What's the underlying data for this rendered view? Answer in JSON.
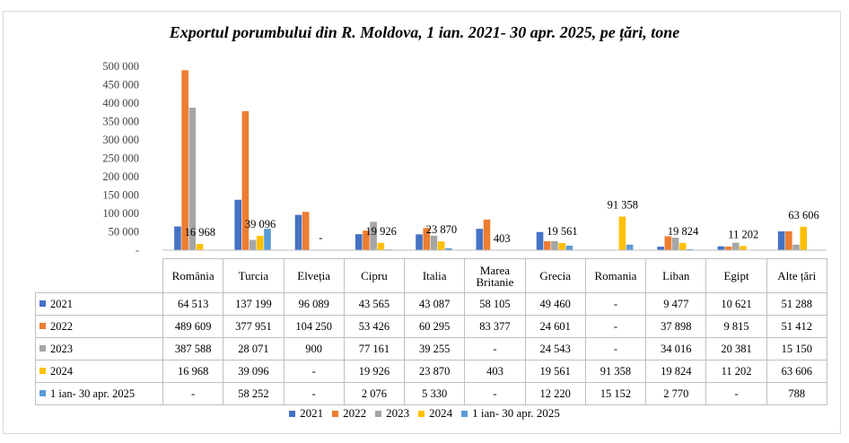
{
  "chart_data": {
    "type": "bar",
    "title": "Exportul porumbului din R. Moldova, 1 ian. 2021- 30 apr. 2025, pe țări, tone",
    "categories": [
      "România",
      "Turcia",
      "Elveția",
      "Cipru",
      "Italia",
      "Marea Britanie",
      "Grecia",
      "Romania",
      "Liban",
      "Egipt",
      "Alte țări"
    ],
    "ylim": [
      0,
      500000
    ],
    "yticks": [
      "500 000",
      "450 000",
      "400 000",
      "350 000",
      "300 000",
      "250 000",
      "200 000",
      "150 000",
      "100 000",
      "50 000",
      "-"
    ],
    "ytick_values": [
      500000,
      450000,
      400000,
      350000,
      300000,
      250000,
      200000,
      150000,
      100000,
      50000,
      0
    ],
    "series": [
      {
        "name": "2021",
        "color": "#4472C4",
        "values": [
          64513,
          137199,
          96089,
          43565,
          43087,
          58105,
          49460,
          null,
          9477,
          10621,
          51288
        ],
        "labels": [
          "64 513",
          "137 199",
          "96 089",
          "43 565",
          "43 087",
          "58 105",
          "49 460",
          "-",
          "9 477",
          "10 621",
          "51 288"
        ]
      },
      {
        "name": "2022",
        "color": "#ED7D31",
        "values": [
          489609,
          377951,
          104250,
          53426,
          60295,
          83377,
          24601,
          null,
          37898,
          9815,
          51412
        ],
        "labels": [
          "489 609",
          "377 951",
          "104 250",
          "53 426",
          "60 295",
          "83 377",
          "24 601",
          "-",
          "37 898",
          "9 815",
          "51 412"
        ]
      },
      {
        "name": "2023",
        "color": "#A5A5A5",
        "values": [
          387588,
          28071,
          900,
          77161,
          39255,
          null,
          24543,
          null,
          34016,
          20381,
          15150
        ],
        "labels": [
          "387 588",
          "28 071",
          "900",
          "77 161",
          "39 255",
          "-",
          "24 543",
          "-",
          "34 016",
          "20 381",
          "15 150"
        ]
      },
      {
        "name": "2024",
        "color": "#FFC000",
        "values": [
          16968,
          39096,
          null,
          19926,
          23870,
          403,
          19561,
          91358,
          19824,
          11202,
          63606
        ],
        "labels": [
          "16 968",
          "39 096",
          "-",
          "19 926",
          "23 870",
          "403",
          "19 561",
          "91 358",
          "19 824",
          "11 202",
          "63 606"
        ]
      },
      {
        "name": "1 ian- 30 apr. 2025",
        "color": "#5B9BD5",
        "values": [
          null,
          58252,
          null,
          2076,
          5330,
          null,
          12220,
          15152,
          2770,
          null,
          788
        ],
        "labels": [
          "-",
          "58 252",
          "-",
          "2 076",
          "5 330",
          "-",
          "12 220",
          "15 152",
          "2 770",
          "-",
          "788"
        ]
      }
    ],
    "bar_data_labels": [
      "16 968",
      "39 096",
      "-",
      "19 926",
      "23 870",
      "403",
      "19 561",
      "91 358",
      "19 824",
      "11 202",
      "63 606"
    ],
    "legend_position": "bottom",
    "grid": false
  }
}
